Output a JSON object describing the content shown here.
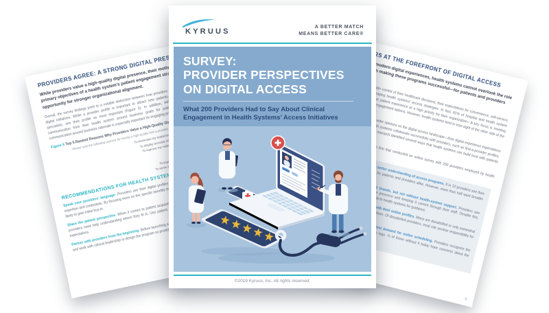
{
  "brand": {
    "logo_text": "KYRUUS",
    "tagline_line1": "A BETTER MATCH",
    "tagline_line2": "MEANS BETTER CARE®"
  },
  "cover": {
    "title_line1": "SURVEY:",
    "title_line2": "PROVIDER PERSPECTIVES",
    "title_line3": "ON DIGITAL ACCESS",
    "subtitle_line1": "What 200 Providers Had to Say About Clinical",
    "subtitle_line2": "Engagement in Health Systems’ Access Initiatives",
    "footer": "©2019 Kyruus, Inc. All rights reserved."
  },
  "palette": {
    "header_blue": "#85aacd",
    "illustration_blue": "#a8c3dd",
    "teal_accent": "#2ab5c4",
    "navy": "#2c4a78",
    "star_gold": "#e9b83d",
    "badge_red": "#d8504e"
  },
  "illustration": {
    "icons": [
      "laptop-telehealth-icon",
      "doctor-with-clipboard",
      "doctor-with-tablet",
      "doctor-pointing",
      "rating-tablet",
      "telehealth-phone-icon",
      "stethoscope-icon",
      "medical-cross-badge-icon"
    ],
    "star_rating": 5
  },
  "left_page": {
    "heading": "PROVIDERS AGREE: A STRONG DIGITAL PRESENCE IS KEY",
    "intro": "While providers value a high-quality digital presence, their motivations differ from the primary objectives of a health system’s patient engagement strategy—presenting an opportunity for stronger organizational alignment.",
    "body": "Overall, the survey findings point to a notable distinction between how providers and health systems tend to prioritize digital initiatives. While a provider profile is important to attract new patients, only 1 in 10 providers, particularly specialists, see their profile as most important (Figure 5). In addition, 44% of providers see room for better communication from their health system around business goals for patient access initiatives, so reinforcing communication around business rationale is especially important for engaging providers effectively in these initiatives.",
    "figure_label": "Figure 5",
    "figure_title": "Top 5 Ranked Reasons Why Providers Value a High-Quality Digital Presence",
    "figure_note": "Please rank the following reasons for having a high-quality find-a-provider profile in terms of how important they are to you.",
    "figure_rows": [
      {
        "label": "To showcase my academic research, publications, and experience",
        "bar": 16
      },
      {
        "label": "To display accurate information about my professional expertise",
        "bar": 14
      },
      {
        "label": "To improve my visibility within my network of referring providers",
        "bar": 13
      },
      {
        "label": "To attract new patients to my practice",
        "bar": 11
      },
      {
        "label": "To ensure I am seeing the right patients",
        "bar": 10
      },
      {
        "label": "To improve patient relationships with incoming patients",
        "bar": 9
      },
      {
        "label": "To serve as an online presence for professional networking",
        "bar": 8
      }
    ],
    "recommendations_heading": "RECOMMENDATIONS FOR HEALTH SYSTEMS",
    "recommendations": [
      {
        "lead": "Speak your providers’ language.",
        "text": "Providers see their digital profiles as a powerful platform to showcase their unique expertise and credentials. By focusing more on the specific benefits that matter to providers, health systems will be more likely to gain initial buy-in."
      },
      {
        "lead": "Share the patient perspective.",
        "text": "When it comes to patient acquisition and ensuring the right patient-provider matches, providers need help understanding where they fit in. Use patient feedback (e.g., ratings) to give providers insight into expectations."
      },
      {
        "lead": "Partner with providers from the beginning.",
        "text": "Before launching a new access initiative, engage providers from the outset and work with clinical leadership to design the program so providers can become true champions."
      }
    ]
  },
  "right_page": {
    "heading": "PROVIDERS AT THE FOREFRONT OF DIGITAL ACCESS",
    "intro": "In building for modern digital experiences, health systems cannot overlook the role providers play in making these programs successful—for patients and providers alike.",
    "body1": "As consumers take greater control of their healthcare decisions, their expectations for convenience, self-service, and transparency are shaping health systems’ access strategies. In fact, 81% of hospital and health system leaders rank improving the patient experience at a high priority for their organization.¹ A key focus is meeting patient demand for digital engagement options. However, health systems tend to lose sight of the other side of the patient experience equation.",
    "body2": "Kyruus sought to uncover provider opinions on the digital access landscape—their digital experience expectations and opportunities to help health systems collaborate successfully with providers, such as find-a-provider profiles, patient ratings, and more. The research identified several ways that health systems can build trust with patients and providers alike.",
    "body3": "Kyruus partnered with a research firm that conducted an online survey with 200 providers employed by health systems across the US.",
    "key_findings": [
      {
        "lead": "Providers would benefit from a better understanding of access programs.",
        "text": "8 in 10 providers see their find-a-provider profile as valuable for patients and providers alike. However, more than half want broader visibility into key digital initiatives."
      },
      {
        "lead": "Providers support extending their brands, but not without health-system support.",
        "text": "Providers see value in creating their find-a-provider presence and keeping it current through their staff. Despite this, many report limited awareness and look to health systems for guidance."
      },
      {
        "lead": "Providers report mixed satisfaction with their online profiles.",
        "text": "Many are dissatisfied or only somewhat satisfied with how their profile presents them. Of dissatisfied providers, most cite unclear responsibility for the profile as a barrier."
      },
      {
        "lead": "Provider enthusiasm falls short of patient demand for online scheduling.",
        "text": "Providers recognize the benefits of online scheduling, but adoption lags. ⅔ of those without it today have concerns about the change."
      }
    ],
    "page_number": "3"
  }
}
